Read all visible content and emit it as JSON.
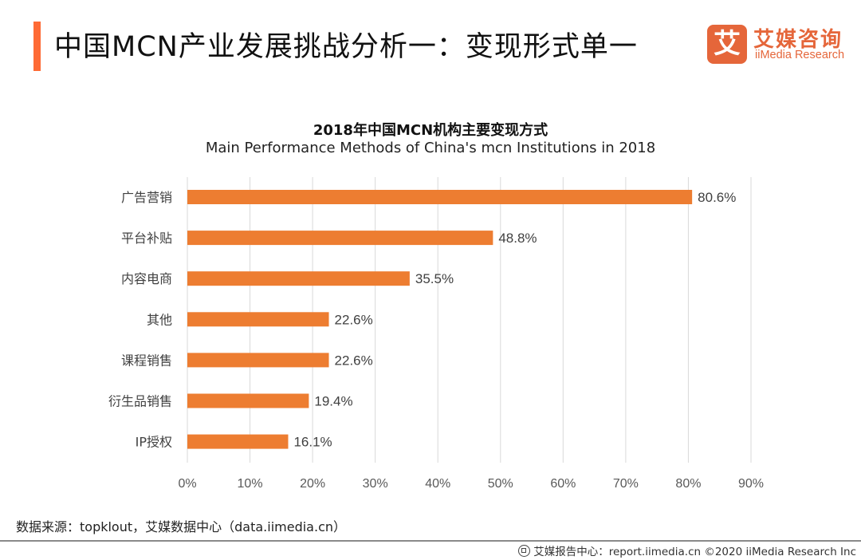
{
  "header": {
    "title": "中国MCN产业发展挑战分析一：变现形式单一",
    "accent_color": "#fe6a35"
  },
  "logo": {
    "glyph": "艾",
    "name_cn": "艾媒咨询",
    "name_en": "iiMedia Research",
    "color": "#e5663a"
  },
  "chart_data": {
    "type": "bar",
    "orientation": "horizontal",
    "title": "2018年中国MCN机构主要变现方式",
    "subtitle": "Main Performance Methods of China's mcn Institutions in 2018",
    "categories": [
      "广告营销",
      "平台补贴",
      "内容电商",
      "其他",
      "课程销售",
      "衍生品销售",
      "IP授权"
    ],
    "values": [
      80.6,
      48.8,
      35.5,
      22.6,
      22.6,
      19.4,
      16.1
    ],
    "value_labels": [
      "80.6%",
      "48.8%",
      "35.5%",
      "22.6%",
      "22.6%",
      "19.4%",
      "16.1%"
    ],
    "xlabel": "",
    "ylabel": "",
    "xlim": [
      0,
      90
    ],
    "x_ticks": [
      0,
      10,
      20,
      30,
      40,
      50,
      60,
      70,
      80,
      90
    ],
    "x_tick_labels": [
      "0%",
      "10%",
      "20%",
      "30%",
      "40%",
      "50%",
      "60%",
      "70%",
      "80%",
      "90%"
    ],
    "grid": "vertical",
    "legend": "none",
    "bar_color": "#ed7d31"
  },
  "source": "数据来源：topklout，艾媒数据中心（data.iimedia.cn）",
  "footer": {
    "icon": "globe-icon",
    "text": "艾媒报告中心：report.iimedia.cn  ©2020  iiMedia Research Inc"
  }
}
